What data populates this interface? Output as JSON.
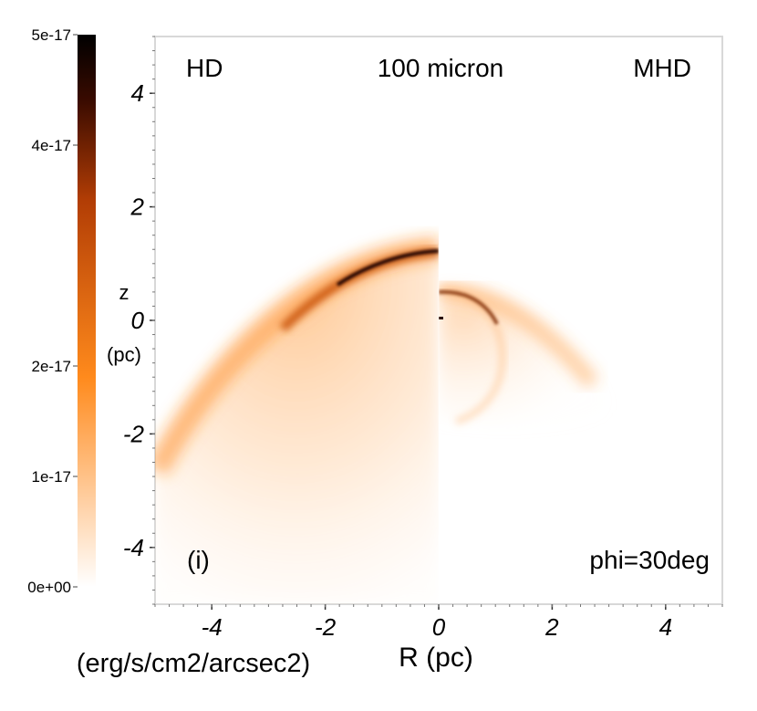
{
  "chart_data": {
    "type": "heatmap",
    "title": "100 micron",
    "left_panel_label": "HD",
    "right_panel_label": "MHD",
    "panel_tag": "(i)",
    "angle_label": "phi=30deg",
    "xlabel": "R (pc)",
    "ylabel_line1": "z",
    "ylabel_line2": "(pc)",
    "xlim": [
      -5,
      5
    ],
    "ylim": [
      -5,
      5
    ],
    "x_ticks": [
      -4,
      -2,
      0,
      2,
      4
    ],
    "x_tick_labels": [
      "-4",
      "-2",
      "0",
      "2",
      "4"
    ],
    "y_ticks": [
      4,
      2,
      0,
      -2,
      -4
    ],
    "y_tick_labels": [
      "4",
      "2",
      "0",
      "-2",
      "-4"
    ],
    "colorbar": {
      "label": "(erg/s/cm2/arcsec2)",
      "range": [
        0,
        5e-17
      ],
      "tick_values": [
        5e-17,
        4e-17,
        2e-17,
        1e-17,
        0
      ],
      "tick_labels": [
        "5e-17",
        "4e-17",
        "2e-17",
        "1e-17",
        "0e+00"
      ],
      "colors": [
        "#ffffff",
        "#ff8a1c",
        "#b23d05",
        "#3a0b00",
        "#000000"
      ]
    }
  }
}
